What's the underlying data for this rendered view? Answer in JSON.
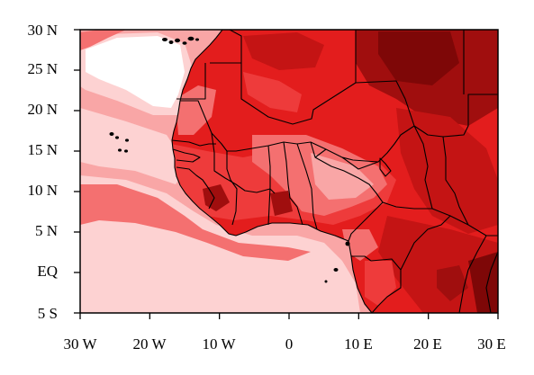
{
  "map": {
    "extent": {
      "lon": [
        -30,
        30
      ],
      "lat": [
        -5,
        30
      ]
    },
    "palette": [
      "#ffffff",
      "#fdd2d2",
      "#f9a6a6",
      "#f47070",
      "#ee3b3b",
      "#e31d1d",
      "#c41414",
      "#a00e0e",
      "#7e0707"
    ],
    "x_ticks": [
      {
        "lon": -30,
        "label": "30 W"
      },
      {
        "lon": -20,
        "label": "20 W"
      },
      {
        "lon": -10,
        "label": "10 W"
      },
      {
        "lon": 0,
        "label": "0"
      },
      {
        "lon": 10,
        "label": "10 E"
      },
      {
        "lon": 20,
        "label": "20 E"
      },
      {
        "lon": 30,
        "label": "30 E"
      }
    ],
    "y_ticks": [
      {
        "lat": 30,
        "label": "30 N"
      },
      {
        "lat": 25,
        "label": "25 N"
      },
      {
        "lat": 20,
        "label": "20 N"
      },
      {
        "lat": 15,
        "label": "15 N"
      },
      {
        "lat": 10,
        "label": "10 N"
      },
      {
        "lat": 5,
        "label": "5 N"
      },
      {
        "lat": 0,
        "label": "EQ"
      },
      {
        "lat": -5,
        "label": "5 S"
      }
    ]
  }
}
